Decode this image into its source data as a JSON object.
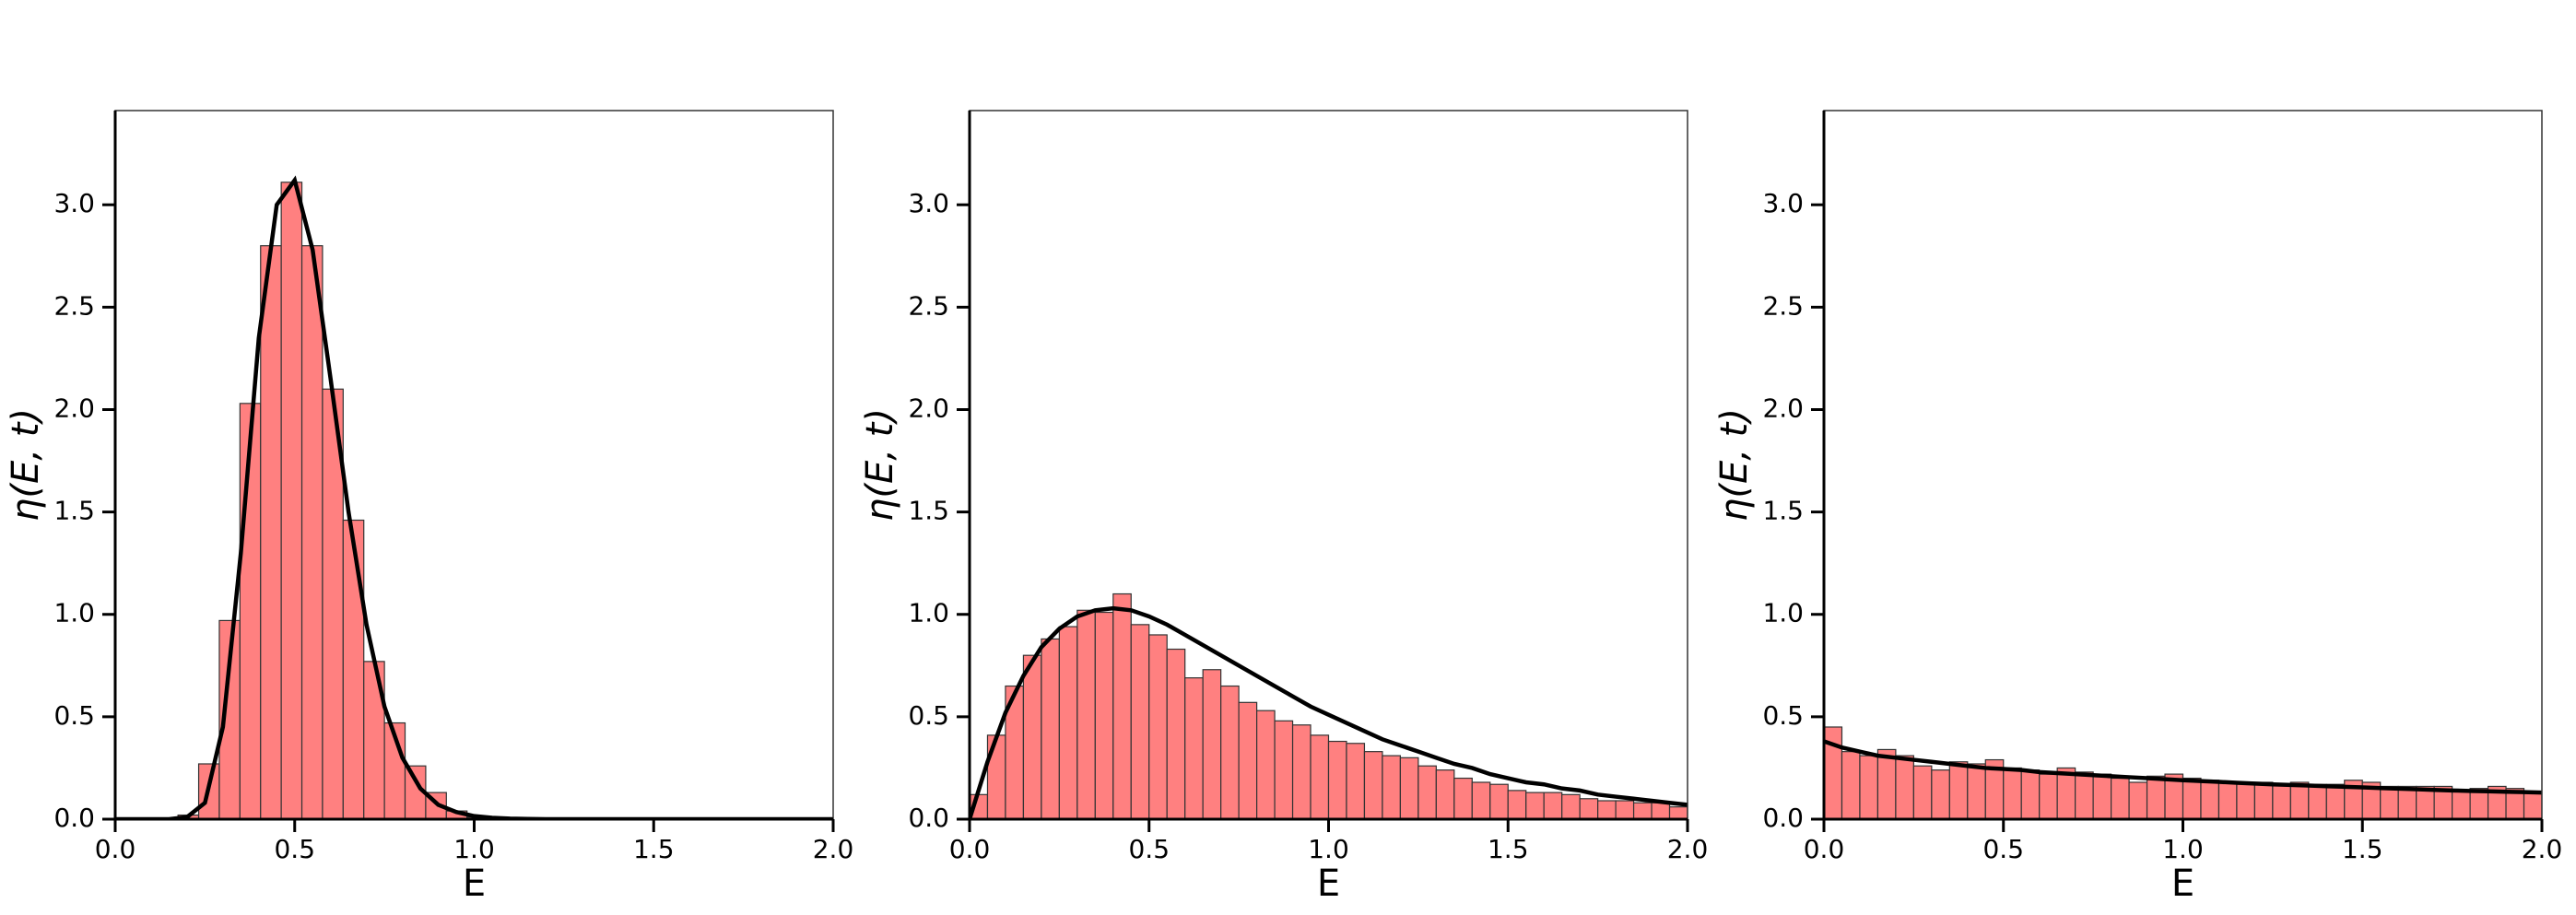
{
  "chart_data": [
    {
      "type": "histogram",
      "xlabel": "E",
      "ylabel": "η(E, t)",
      "xlim": [
        0,
        2
      ],
      "ylim": [
        0,
        3.46
      ],
      "xticks": [
        {
          "value": 0,
          "label": "0.0"
        },
        {
          "value": 0.5,
          "label": "0.5"
        },
        {
          "value": 1,
          "label": "1.0"
        },
        {
          "value": 1.5,
          "label": "1.5"
        },
        {
          "value": 2,
          "label": "2.0"
        }
      ],
      "yticks": [
        {
          "value": 0,
          "label": "0.0"
        },
        {
          "value": 0.5,
          "label": "0.5"
        },
        {
          "value": 1,
          "label": "1.0"
        },
        {
          "value": 1.5,
          "label": "1.5"
        },
        {
          "value": 2,
          "label": "2.0"
        },
        {
          "value": 2.5,
          "label": "2.5"
        },
        {
          "value": 3,
          "label": "3.0"
        }
      ],
      "color": "#ff8080",
      "edgecolor": "#333333",
      "bins": [
        0.175,
        0.2325,
        0.29,
        0.3475,
        0.405,
        0.4625,
        0.52,
        0.5775,
        0.635,
        0.6925,
        0.75,
        0.8075,
        0.865,
        0.9225,
        0.98,
        1.0375
      ],
      "values": [
        0.02,
        0.27,
        0.97,
        2.03,
        2.8,
        3.11,
        2.8,
        2.1,
        1.46,
        0.77,
        0.47,
        0.26,
        0.13,
        0.04,
        0.01
      ],
      "line": {
        "color": "#000000",
        "x": [
          0,
          0.05,
          0.1,
          0.15,
          0.2,
          0.25,
          0.3,
          0.35,
          0.4,
          0.45,
          0.5,
          0.55,
          0.6,
          0.65,
          0.7,
          0.75,
          0.8,
          0.85,
          0.9,
          0.95,
          1,
          1.05,
          1.1,
          1.15,
          1.2,
          1.25,
          1.3,
          1.35,
          1.4,
          1.45,
          1.5,
          1.55,
          1.6,
          1.65,
          1.7,
          1.75,
          1.8,
          1.85,
          1.9,
          1.95,
          2
        ],
        "values": [
          0,
          0,
          0,
          0,
          0.01,
          0.08,
          0.45,
          1.3,
          2.35,
          3.0,
          3.12,
          2.78,
          2.15,
          1.5,
          0.95,
          0.55,
          0.3,
          0.15,
          0.07,
          0.035,
          0.015,
          0.007,
          0.003,
          0.001,
          0,
          0,
          0,
          0,
          0,
          0,
          0,
          0,
          0,
          0,
          0,
          0,
          0,
          0,
          0,
          0,
          0
        ]
      }
    },
    {
      "type": "histogram",
      "xlabel": "E",
      "ylabel": "η(E, t)",
      "xlim": [
        0,
        2
      ],
      "ylim": [
        0,
        3.46
      ],
      "xticks": [
        {
          "value": 0,
          "label": "0.0"
        },
        {
          "value": 0.5,
          "label": "0.5"
        },
        {
          "value": 1,
          "label": "1.0"
        },
        {
          "value": 1.5,
          "label": "1.5"
        },
        {
          "value": 2,
          "label": "2.0"
        }
      ],
      "yticks": [
        {
          "value": 0,
          "label": "0.0"
        },
        {
          "value": 0.5,
          "label": "0.5"
        },
        {
          "value": 1,
          "label": "1.0"
        },
        {
          "value": 1.5,
          "label": "1.5"
        },
        {
          "value": 2,
          "label": "2.0"
        },
        {
          "value": 2.5,
          "label": "2.5"
        },
        {
          "value": 3,
          "label": "3.0"
        }
      ],
      "color": "#ff8080",
      "edgecolor": "#333333",
      "bins": [
        0,
        0.05,
        0.1,
        0.15,
        0.2,
        0.25,
        0.3,
        0.35,
        0.4,
        0.45,
        0.5,
        0.55,
        0.6,
        0.65,
        0.7,
        0.75,
        0.8,
        0.85,
        0.9,
        0.95,
        1,
        1.05,
        1.1,
        1.15,
        1.2,
        1.25,
        1.3,
        1.35,
        1.4,
        1.45,
        1.5,
        1.55,
        1.6,
        1.65,
        1.7,
        1.75,
        1.8,
        1.85,
        1.9,
        1.95,
        2
      ],
      "values": [
        0.12,
        0.41,
        0.65,
        0.8,
        0.88,
        0.94,
        1.02,
        1.01,
        1.1,
        0.95,
        0.9,
        0.83,
        0.69,
        0.73,
        0.65,
        0.57,
        0.53,
        0.48,
        0.46,
        0.41,
        0.38,
        0.37,
        0.33,
        0.31,
        0.3,
        0.26,
        0.24,
        0.2,
        0.18,
        0.17,
        0.14,
        0.13,
        0.13,
        0.12,
        0.1,
        0.09,
        0.09,
        0.08,
        0.08,
        0.06
      ],
      "line": {
        "color": "#000000",
        "x": [
          0,
          0.05,
          0.1,
          0.15,
          0.2,
          0.25,
          0.3,
          0.35,
          0.4,
          0.45,
          0.5,
          0.55,
          0.6,
          0.65,
          0.7,
          0.75,
          0.8,
          0.85,
          0.9,
          0.95,
          1,
          1.05,
          1.1,
          1.15,
          1.2,
          1.25,
          1.3,
          1.35,
          1.4,
          1.45,
          1.5,
          1.55,
          1.6,
          1.65,
          1.7,
          1.75,
          1.8,
          1.85,
          1.9,
          1.95,
          2
        ],
        "values": [
          0,
          0.28,
          0.52,
          0.7,
          0.84,
          0.93,
          0.99,
          1.02,
          1.03,
          1.02,
          0.99,
          0.95,
          0.9,
          0.85,
          0.8,
          0.75,
          0.7,
          0.65,
          0.6,
          0.55,
          0.51,
          0.47,
          0.43,
          0.39,
          0.36,
          0.33,
          0.3,
          0.27,
          0.25,
          0.22,
          0.2,
          0.18,
          0.17,
          0.15,
          0.14,
          0.12,
          0.11,
          0.1,
          0.09,
          0.08,
          0.07
        ]
      }
    },
    {
      "type": "histogram",
      "xlabel": "E",
      "ylabel": "η(E, t)",
      "xlim": [
        0,
        2
      ],
      "ylim": [
        0,
        3.46
      ],
      "xticks": [
        {
          "value": 0,
          "label": "0.0"
        },
        {
          "value": 0.5,
          "label": "0.5"
        },
        {
          "value": 1,
          "label": "1.0"
        },
        {
          "value": 1.5,
          "label": "1.5"
        },
        {
          "value": 2,
          "label": "2.0"
        }
      ],
      "yticks": [
        {
          "value": 0,
          "label": "0.0"
        },
        {
          "value": 0.5,
          "label": "0.5"
        },
        {
          "value": 1,
          "label": "1.0"
        },
        {
          "value": 1.5,
          "label": "1.5"
        },
        {
          "value": 2,
          "label": "2.0"
        },
        {
          "value": 2.5,
          "label": "2.5"
        },
        {
          "value": 3,
          "label": "3.0"
        }
      ],
      "color": "#ff8080",
      "edgecolor": "#333333",
      "bins": [
        0,
        0.05,
        0.1,
        0.15,
        0.2,
        0.25,
        0.3,
        0.35,
        0.4,
        0.45,
        0.5,
        0.55,
        0.6,
        0.65,
        0.7,
        0.75,
        0.8,
        0.85,
        0.9,
        0.95,
        1,
        1.05,
        1.1,
        1.15,
        1.2,
        1.25,
        1.3,
        1.35,
        1.4,
        1.45,
        1.5,
        1.55,
        1.6,
        1.65,
        1.7,
        1.75,
        1.8,
        1.85,
        1.9,
        1.95,
        2
      ],
      "values": [
        0.45,
        0.33,
        0.31,
        0.34,
        0.31,
        0.26,
        0.24,
        0.28,
        0.27,
        0.29,
        0.25,
        0.24,
        0.22,
        0.25,
        0.23,
        0.22,
        0.2,
        0.18,
        0.21,
        0.22,
        0.2,
        0.19,
        0.18,
        0.18,
        0.18,
        0.17,
        0.18,
        0.17,
        0.17,
        0.19,
        0.18,
        0.16,
        0.16,
        0.16,
        0.16,
        0.14,
        0.15,
        0.16,
        0.15,
        0.13
      ],
      "line": {
        "color": "#000000",
        "x": [
          0,
          0.05,
          0.1,
          0.15,
          0.2,
          0.25,
          0.3,
          0.35,
          0.4,
          0.45,
          0.5,
          0.55,
          0.6,
          0.65,
          0.7,
          0.75,
          0.8,
          0.85,
          0.9,
          0.95,
          1,
          1.05,
          1.1,
          1.15,
          1.2,
          1.25,
          1.3,
          1.35,
          1.4,
          1.45,
          1.5,
          1.55,
          1.6,
          1.65,
          1.7,
          1.75,
          1.8,
          1.85,
          1.9,
          1.95,
          2
        ],
        "values": [
          0.38,
          0.35,
          0.33,
          0.31,
          0.3,
          0.29,
          0.28,
          0.27,
          0.26,
          0.25,
          0.245,
          0.24,
          0.23,
          0.225,
          0.22,
          0.215,
          0.21,
          0.205,
          0.2,
          0.195,
          0.19,
          0.186,
          0.182,
          0.178,
          0.174,
          0.17,
          0.167,
          0.164,
          0.161,
          0.158,
          0.155,
          0.152,
          0.149,
          0.146,
          0.143,
          0.14,
          0.138,
          0.136,
          0.134,
          0.132,
          0.13
        ]
      }
    }
  ]
}
